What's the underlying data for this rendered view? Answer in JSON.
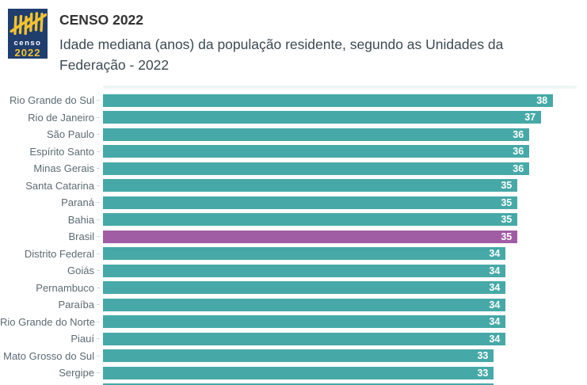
{
  "header": {
    "logo": {
      "line1": "censo",
      "line2": "2022"
    },
    "title": "CENSO 2022",
    "subtitle": "Idade mediana (anos) da população residente, segundo as Unidades da Federação - 2022"
  },
  "chart_data": {
    "type": "bar",
    "orientation": "horizontal",
    "title": "Idade mediana (anos) da população residente, segundo as Unidades da Federação - 2022",
    "categories": [
      "Rio Grande do Sul",
      "Rio de Janeiro",
      "São Paulo",
      "Espírito Santo",
      "Minas Gerais",
      "Santa Catarina",
      "Paraná",
      "Bahia",
      "Brasil",
      "Distrito Federal",
      "Goiás",
      "Pernambuco",
      "Paraíba",
      "Rio Grande do Norte",
      "Piauí",
      "Mato Grosso do Sul",
      "Sergipe"
    ],
    "values": [
      38,
      37,
      36,
      36,
      36,
      35,
      35,
      35,
      35,
      34,
      34,
      34,
      34,
      34,
      34,
      33,
      33
    ],
    "highlight_category": "Brasil",
    "xlim": [
      0,
      40
    ],
    "grid": false,
    "legend": "none",
    "value_labels": "inside-end",
    "colors": {
      "bar": "#46A9A7",
      "highlight_bar": "#A15DA4",
      "value_label": "#FFFFFF",
      "category_label": "#5C6B73",
      "logo_background": "#1F3E6E",
      "logo_accent": "#F2C230"
    },
    "partial_bottom_bar_value": 33
  }
}
